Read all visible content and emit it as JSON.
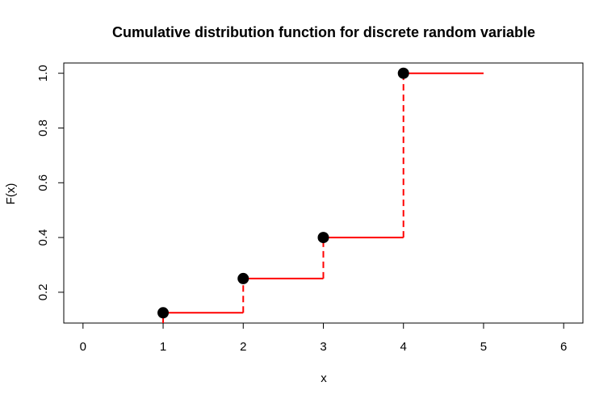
{
  "chart_data": {
    "type": "line",
    "title": "Cumulative distribution function for discrete random variable",
    "xlabel": "x",
    "ylabel": "F(x)",
    "xlim": [
      -0.24,
      6.24
    ],
    "ylim": [
      0.0875,
      1.0375
    ],
    "x_ticks": [
      0,
      1,
      2,
      3,
      4,
      5,
      6
    ],
    "x_tick_labels": [
      "0",
      "1",
      "2",
      "3",
      "4",
      "5",
      "6"
    ],
    "y_ticks": [
      0.2,
      0.4,
      0.6,
      0.8,
      1.0
    ],
    "y_tick_labels": [
      "0.2",
      "0.4",
      "0.6",
      "0.8",
      "1.0"
    ],
    "grid": false,
    "points": [
      {
        "x": 1,
        "y": 0.125
      },
      {
        "x": 2,
        "y": 0.25
      },
      {
        "x": 3,
        "y": 0.4
      },
      {
        "x": 4,
        "y": 1.0
      }
    ],
    "steps": [
      {
        "x_start": 1,
        "x_end": 2,
        "y": 0.125
      },
      {
        "x_start": 2,
        "x_end": 3,
        "y": 0.25
      },
      {
        "x_start": 3,
        "x_end": 4,
        "y": 0.4
      },
      {
        "x_start": 4,
        "x_end": 5,
        "y": 1.0
      }
    ],
    "jumps": [
      {
        "x": 1,
        "y_from": 0.0875,
        "y_to": 0.125
      },
      {
        "x": 2,
        "y_from": 0.125,
        "y_to": 0.25
      },
      {
        "x": 3,
        "y_from": 0.25,
        "y_to": 0.4
      },
      {
        "x": 4,
        "y_from": 0.4,
        "y_to": 1.0
      }
    ],
    "colors": {
      "step": "#ff0000",
      "point": "#000000",
      "axis": "#000000"
    }
  }
}
